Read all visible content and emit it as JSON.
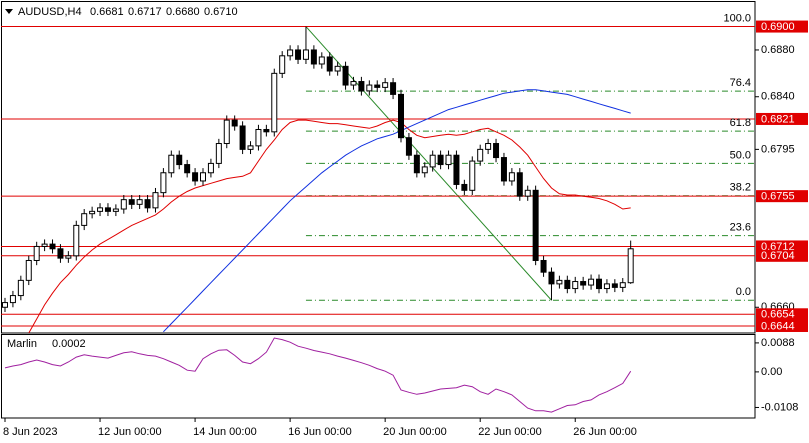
{
  "chart_data": {
    "type": "candlestick",
    "header": {
      "symbol": "AUDUSD,H4",
      "ohlc_labels": [
        "0.6681",
        "0.6717",
        "0.6680",
        "0.6710"
      ]
    },
    "categories": [
      "8 Jun 2023",
      null,
      null,
      null,
      null,
      null,
      null,
      null,
      null,
      null,
      null,
      null,
      "12 Jun 00:00",
      null,
      null,
      null,
      null,
      null,
      null,
      null,
      null,
      null,
      null,
      null,
      "14 Jun 00:00",
      null,
      null,
      null,
      null,
      null,
      null,
      null,
      null,
      null,
      null,
      null,
      "16 Jun 00:00",
      null,
      null,
      null,
      null,
      null,
      null,
      null,
      null,
      null,
      null,
      null,
      "20 Jun 00:00",
      null,
      null,
      null,
      null,
      null,
      null,
      null,
      null,
      null,
      null,
      null,
      "22 Jun 00:00",
      null,
      null,
      null,
      null,
      null,
      null,
      null,
      null,
      null,
      null,
      null,
      "26 Jun 00:00",
      null,
      null,
      null,
      null,
      null,
      null,
      null
    ],
    "open": [
      0.666,
      0.6664,
      0.667,
      0.6683,
      0.67,
      0.6712,
      0.6714,
      0.671,
      0.6702,
      0.6704,
      0.673,
      0.674,
      0.6742,
      0.6745,
      0.6742,
      0.6744,
      0.6752,
      0.6748,
      0.6752,
      0.6745,
      0.6758,
      0.6775,
      0.679,
      0.6782,
      0.6775,
      0.6768,
      0.6775,
      0.6783,
      0.68,
      0.682,
      0.6815,
      0.6795,
      0.6798,
      0.6812,
      0.681,
      0.686,
      0.6875,
      0.688,
      0.6872,
      0.688,
      0.6868,
      0.6874,
      0.6862,
      0.6866,
      0.685,
      0.6853,
      0.6845,
      0.685,
      0.6848,
      0.6852,
      0.6842,
      0.6805,
      0.679,
      0.6775,
      0.678,
      0.679,
      0.6782,
      0.679,
      0.6765,
      0.676,
      0.6785,
      0.6795,
      0.68,
      0.6788,
      0.6768,
      0.6775,
      0.6755,
      0.676,
      0.67,
      0.669,
      0.668,
      0.6683,
      0.6676,
      0.6682,
      0.6679,
      0.6684,
      0.6676,
      0.668,
      0.6677,
      0.6681
    ],
    "high": [
      0.6668,
      0.6674,
      0.6687,
      0.6704,
      0.6716,
      0.6718,
      0.6718,
      0.6714,
      0.6708,
      0.6734,
      0.6744,
      0.6746,
      0.6749,
      0.6749,
      0.6748,
      0.6756,
      0.6756,
      0.6756,
      0.6756,
      0.6762,
      0.6779,
      0.6794,
      0.6794,
      0.6786,
      0.6779,
      0.6779,
      0.6787,
      0.6804,
      0.6824,
      0.6824,
      0.6819,
      0.6802,
      0.6816,
      0.6816,
      0.6864,
      0.6879,
      0.6884,
      0.6884,
      0.69,
      0.6884,
      0.6878,
      0.6878,
      0.687,
      0.687,
      0.6857,
      0.6857,
      0.6854,
      0.6854,
      0.6856,
      0.6856,
      0.6846,
      0.6809,
      0.6794,
      0.6784,
      0.6794,
      0.6794,
      0.6794,
      0.6794,
      0.6769,
      0.6789,
      0.6799,
      0.6804,
      0.6804,
      0.6792,
      0.6779,
      0.6779,
      0.6764,
      0.6764,
      0.6704,
      0.6694,
      0.6687,
      0.6687,
      0.6686,
      0.6686,
      0.6688,
      0.6688,
      0.6684,
      0.6684,
      0.6685,
      0.6717
    ],
    "low": [
      0.6656,
      0.666,
      0.6666,
      0.6679,
      0.6696,
      0.6708,
      0.6706,
      0.6698,
      0.6698,
      0.67,
      0.6726,
      0.6736,
      0.6738,
      0.6738,
      0.6738,
      0.674,
      0.6744,
      0.6744,
      0.6741,
      0.6741,
      0.6754,
      0.6771,
      0.6778,
      0.6771,
      0.6764,
      0.6764,
      0.6771,
      0.6779,
      0.6796,
      0.6811,
      0.6791,
      0.6791,
      0.6794,
      0.6806,
      0.6806,
      0.6856,
      0.6871,
      0.6868,
      0.6868,
      0.6864,
      0.6864,
      0.6858,
      0.6858,
      0.6846,
      0.6846,
      0.6841,
      0.6841,
      0.6844,
      0.6844,
      0.6838,
      0.6801,
      0.6786,
      0.6771,
      0.6771,
      0.6776,
      0.6778,
      0.6778,
      0.6761,
      0.6756,
      0.6756,
      0.6781,
      0.6791,
      0.6784,
      0.6764,
      0.6764,
      0.6751,
      0.6751,
      0.6696,
      0.6686,
      0.6666,
      0.6676,
      0.6672,
      0.6672,
      0.6675,
      0.6675,
      0.6672,
      0.6672,
      0.6673,
      0.6673,
      0.668
    ],
    "close": [
      0.6664,
      0.667,
      0.6683,
      0.67,
      0.6712,
      0.6714,
      0.671,
      0.6702,
      0.6704,
      0.673,
      0.674,
      0.6742,
      0.6745,
      0.6742,
      0.6744,
      0.6752,
      0.6748,
      0.6752,
      0.6745,
      0.6758,
      0.6775,
      0.679,
      0.6782,
      0.6775,
      0.6768,
      0.6775,
      0.6783,
      0.68,
      0.682,
      0.6815,
      0.6795,
      0.6798,
      0.6812,
      0.681,
      0.686,
      0.6875,
      0.688,
      0.6872,
      0.688,
      0.6868,
      0.6874,
      0.6862,
      0.6866,
      0.685,
      0.6853,
      0.6845,
      0.685,
      0.6848,
      0.6852,
      0.6842,
      0.6805,
      0.679,
      0.6775,
      0.678,
      0.679,
      0.6782,
      0.679,
      0.6765,
      0.676,
      0.6785,
      0.6795,
      0.68,
      0.6788,
      0.6768,
      0.6775,
      0.6755,
      0.676,
      0.67,
      0.669,
      0.668,
      0.6683,
      0.6676,
      0.6682,
      0.6679,
      0.6684,
      0.6676,
      0.668,
      0.6677,
      0.6681,
      0.671
    ],
    "up_color": "#ffffff",
    "down_color": "#000000",
    "ylim": [
      0.6638,
      0.6921
    ],
    "yticks": [
      {
        "value": 0.688,
        "label": "0.6880"
      },
      {
        "value": 0.684,
        "label": "0.6840"
      },
      0.6795,
      {
        "value": 0.666,
        "label": "0.6660"
      }
    ],
    "overlays": [
      {
        "color": "#e00000",
        "values": [
          null,
          null,
          null,
          0.6638,
          0.665,
          0.6662,
          0.6672,
          0.6681,
          0.6688,
          0.6696,
          0.6703,
          0.6709,
          0.6714,
          0.6718,
          0.6722,
          0.6726,
          0.673,
          0.6733,
          0.6736,
          0.6739,
          0.6744,
          0.675,
          0.6755,
          0.6759,
          0.6762,
          0.6764,
          0.6766,
          0.6768,
          0.677,
          0.6771,
          0.6772,
          0.6775,
          0.6785,
          0.6795,
          0.6803,
          0.6812,
          0.6818,
          0.682,
          0.682,
          0.6819,
          0.6818,
          0.6817,
          0.6817,
          0.6816,
          0.6815,
          0.6814,
          0.6813,
          0.6815,
          0.6818,
          0.682,
          0.6818,
          0.6812,
          0.6807,
          0.6805,
          0.6806,
          0.6807,
          0.6808,
          0.6807,
          0.6808,
          0.681,
          0.6812,
          0.6813,
          0.681,
          0.6807,
          0.6803,
          0.6797,
          0.679,
          0.678,
          0.677,
          0.6762,
          0.6757,
          0.6756,
          0.6756,
          0.6755,
          0.6754,
          0.6753,
          0.6751,
          0.6748,
          0.6744,
          0.6745
        ]
      },
      {
        "color": "#1030e0",
        "values": [
          null,
          null,
          null,
          null,
          null,
          null,
          null,
          null,
          null,
          null,
          null,
          null,
          null,
          null,
          null,
          null,
          null,
          null,
          null,
          null,
          0.6639,
          0.6646,
          0.6653,
          0.666,
          0.6667,
          0.6674,
          0.6681,
          0.6688,
          0.6695,
          0.6702,
          0.6709,
          0.6716,
          0.6723,
          0.673,
          0.6737,
          0.6744,
          0.6751,
          0.6757,
          0.6763,
          0.6769,
          0.6775,
          0.678,
          0.6785,
          0.679,
          0.6794,
          0.6798,
          0.6801,
          0.6804,
          0.6806,
          0.6808,
          0.6811,
          0.6814,
          0.6817,
          0.682,
          0.6823,
          0.6826,
          0.6829,
          0.6831,
          0.6833,
          0.6835,
          0.6837,
          0.6839,
          0.6841,
          0.6843,
          0.6844,
          0.6845,
          0.6846,
          0.6846,
          0.6845,
          0.6844,
          0.6843,
          0.6842,
          0.684,
          0.6838,
          0.6836,
          0.6834,
          0.6832,
          0.683,
          0.6828,
          0.6826
        ]
      }
    ],
    "hlines": {
      "color": "#e00000",
      "values": [
        {
          "value": 0.69,
          "label": "0.6900"
        },
        0.6821,
        0.6755,
        0.6712,
        0.6704,
        0.6654,
        0.6644
      ]
    },
    "fib": {
      "color": "#2a8a2a",
      "levels": [
        {
          "value": 100,
          "label": "100.0"
        },
        76.4,
        61.8,
        {
          "value": 50,
          "label": "50.0"
        },
        38.2,
        23.6,
        {
          "value": 0,
          "label": "0.0"
        }
      ]
    },
    "indicator": {
      "name": "Marlin",
      "color": "#a020a0",
      "values": [
        0.0012,
        0.0018,
        0.0022,
        0.003,
        0.0036,
        0.003,
        0.0022,
        0.0018,
        0.003,
        0.0045,
        0.0052,
        0.0048,
        0.0045,
        0.0042,
        0.005,
        0.0058,
        0.0061,
        0.0055,
        0.005,
        0.0048,
        0.004,
        0.003,
        0.002,
        0.0005,
        0.0002,
        0.004,
        0.0055,
        0.0066,
        0.0067,
        0.005,
        0.003,
        0.0025,
        0.004,
        0.006,
        0.0103,
        0.0098,
        0.009,
        0.0078,
        0.0072,
        0.0065,
        0.006,
        0.0055,
        0.0048,
        0.0042,
        0.0035,
        0.0028,
        0.002,
        0.001,
        0.0002,
        -0.001,
        -0.0055,
        -0.0062,
        -0.0068,
        -0.0064,
        -0.0058,
        -0.0052,
        -0.005,
        -0.0048,
        -0.004,
        -0.0045,
        -0.006,
        -0.0068,
        -0.0052,
        -0.006,
        -0.007,
        -0.009,
        -0.011,
        -0.0118,
        -0.0118,
        -0.0122,
        -0.0112,
        -0.0102,
        -0.01,
        -0.009,
        -0.0085,
        -0.007,
        -0.006,
        -0.0048,
        -0.0035,
        0.0002
      ],
      "ylim": [
        -0.014,
        0.0112
      ],
      "yticks": [
        0.0088,
        {
          "value": 0,
          "label": "0.00"
        },
        -0.0108
      ]
    }
  }
}
